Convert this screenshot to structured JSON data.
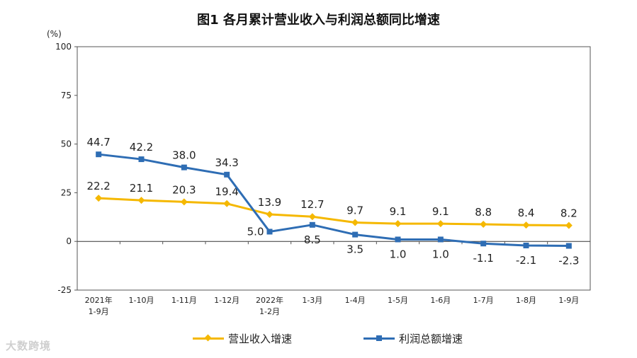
{
  "chart_data": {
    "type": "line",
    "title": "图1  各月累计营业收入与利润总额同比增速",
    "unit_label": "(%)",
    "ylim": [
      -25,
      100
    ],
    "yticks": [
      "100",
      "75",
      "50",
      "25",
      "0",
      "-25"
    ],
    "ytick_values": [
      100,
      75,
      50,
      25,
      0,
      -25
    ],
    "categories": [
      [
        "2021年",
        "1-9月"
      ],
      [
        "1-10月"
      ],
      [
        "1-11月"
      ],
      [
        "1-12月"
      ],
      [
        "2022年",
        "1-2月"
      ],
      [
        "1-3月"
      ],
      [
        "1-4月"
      ],
      [
        "1-5月"
      ],
      [
        "1-6月"
      ],
      [
        "1-7月"
      ],
      [
        "1-8月"
      ],
      [
        "1-9月"
      ]
    ],
    "series": [
      {
        "name": "营业收入增速",
        "color": "#F5B800",
        "marker": "diamond",
        "values": [
          22.2,
          21.1,
          20.3,
          19.4,
          13.9,
          12.7,
          9.7,
          9.1,
          9.1,
          8.8,
          8.4,
          8.2
        ],
        "labels": [
          "22.2",
          "21.1",
          "20.3",
          "19.4",
          "13.9",
          "12.7",
          "9.7",
          "9.1",
          "9.1",
          "8.8",
          "8.4",
          "8.2"
        ],
        "label_pos": [
          "above",
          "above",
          "above",
          "above",
          "above",
          "above",
          "above",
          "above",
          "above",
          "above",
          "above",
          "above"
        ]
      },
      {
        "name": "利润总额增速",
        "color": "#2E6DB4",
        "marker": "square",
        "values": [
          44.7,
          42.2,
          38.0,
          34.3,
          5.0,
          8.5,
          3.5,
          1.0,
          1.0,
          -1.1,
          -2.1,
          -2.3
        ],
        "labels": [
          "44.7",
          "42.2",
          "38.0",
          "34.3",
          "5.0",
          "8.5",
          "3.5",
          "1.0",
          "1.0",
          "-1.1",
          "-2.1",
          "-2.3"
        ],
        "label_pos": [
          "above",
          "above",
          "above",
          "above",
          "left",
          "below",
          "below",
          "below",
          "below",
          "below",
          "below",
          "below"
        ]
      }
    ]
  },
  "watermark": "大数跨境"
}
